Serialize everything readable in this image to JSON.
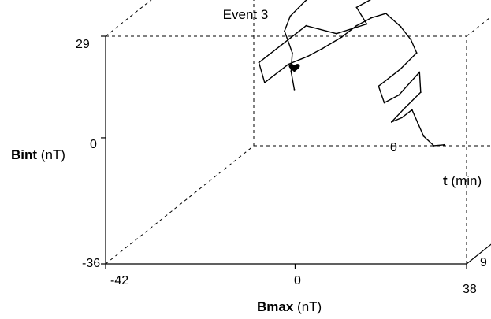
{
  "chart_data": {
    "type": "line",
    "projection": "3d-box",
    "title": "Event 3",
    "axes": {
      "x": {
        "label_symbol": "Bmax",
        "label_unit": "(nT)",
        "ticks": [
          "-42",
          "0",
          "38"
        ],
        "range": [
          -42,
          38
        ]
      },
      "y": {
        "label_symbol": "Bint",
        "label_unit": "(nT)",
        "ticks": [
          "29",
          "0",
          "-36"
        ],
        "range": [
          -36,
          29
        ]
      },
      "t": {
        "label_symbol": "t",
        "label_unit": "(min)",
        "ticks": [
          "0",
          "9"
        ],
        "range": [
          0,
          9
        ]
      }
    },
    "frame_style": "dashed",
    "series": [
      {
        "color": "#000000",
        "start_marker": "heart",
        "points": [
          [
            -33,
            -20,
            0.0
          ],
          [
            -33,
            -14,
            0.2
          ],
          [
            -32,
            -8,
            0.4
          ],
          [
            -33,
            -1,
            0.6
          ],
          [
            -31,
            4,
            0.8
          ],
          [
            -27,
            9,
            1.0
          ],
          [
            -22,
            14,
            1.2
          ],
          [
            -15,
            19,
            1.4
          ],
          [
            -8,
            23,
            1.6
          ],
          [
            -1,
            26,
            1.8
          ],
          [
            5,
            27,
            2.0
          ],
          [
            10,
            25,
            2.2
          ],
          [
            4,
            22,
            2.4
          ],
          [
            -3,
            18,
            2.6
          ],
          [
            -9,
            14,
            2.8
          ],
          [
            -6,
            10,
            3.0
          ],
          [
            -12,
            8,
            3.2
          ],
          [
            -18,
            11,
            3.4
          ],
          [
            -23,
            6,
            3.6
          ],
          [
            -27,
            2,
            3.8
          ],
          [
            -25,
            -3,
            4.0
          ],
          [
            -19,
            3,
            4.2
          ],
          [
            -14,
            6,
            4.4
          ],
          [
            -10,
            9,
            4.6
          ],
          [
            -5,
            13,
            4.8
          ],
          [
            -1,
            17,
            5.0
          ],
          [
            3,
            20,
            5.2
          ],
          [
            7,
            22,
            5.4
          ],
          [
            11,
            19,
            5.6
          ],
          [
            14,
            16,
            5.8
          ],
          [
            16,
            13,
            6.0
          ],
          [
            13,
            9,
            6.2
          ],
          [
            9,
            5,
            6.4
          ],
          [
            11,
            1,
            6.6
          ],
          [
            15,
            4,
            6.8
          ],
          [
            18,
            8,
            7.0
          ],
          [
            21,
            12,
            7.2
          ],
          [
            22,
            7,
            7.4
          ],
          [
            19,
            3,
            7.6
          ],
          [
            17,
            0,
            7.8
          ],
          [
            20,
            2,
            8.0
          ],
          [
            23,
            5,
            8.2
          ],
          [
            25,
            2,
            8.4
          ],
          [
            27,
            -1,
            8.6
          ],
          [
            30,
            -3,
            8.8
          ],
          [
            33,
            -2,
            9.0
          ]
        ]
      }
    ]
  }
}
